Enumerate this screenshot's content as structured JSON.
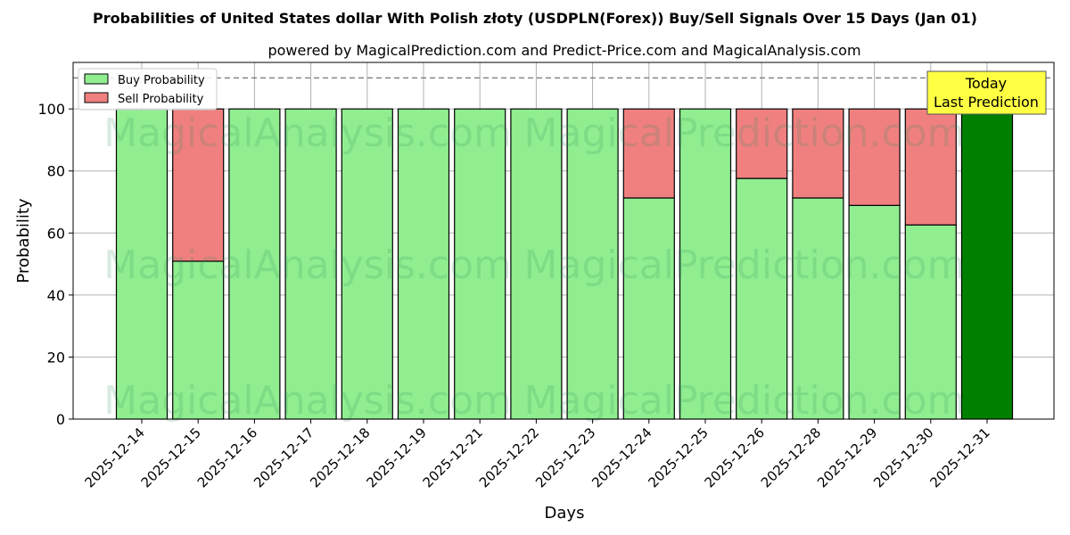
{
  "chart_data": {
    "type": "bar",
    "stacked": true,
    "title": "Probabilities of United States dollar With Polish złoty (USDPLN(Forex)) Buy/Sell Signals Over 15 Days (Jan 01)",
    "subtitle": "powered by MagicalPrediction.com and Predict-Price.com and MagicalAnalysis.com",
    "xlabel": "Days",
    "ylabel": "Probability",
    "ylim": [
      0,
      115
    ],
    "yticks": [
      0,
      20,
      40,
      60,
      80,
      100
    ],
    "grid": true,
    "reference_line": 110,
    "categories": [
      "2025-12-14",
      "2025-12-15",
      "2025-12-16",
      "2025-12-17",
      "2025-12-18",
      "2025-12-19",
      "2025-12-21",
      "2025-12-22",
      "2025-12-23",
      "2025-12-24",
      "2025-12-25",
      "2025-12-26",
      "2025-12-28",
      "2025-12-29",
      "2025-12-30",
      "2025-12-31"
    ],
    "series": [
      {
        "name": "Buy Probability",
        "color": "#90ee90",
        "values": [
          100,
          50.9,
          100,
          100,
          100,
          100,
          100,
          100,
          100,
          71.3,
          100,
          77.6,
          71.3,
          68.9,
          62.6,
          100
        ]
      },
      {
        "name": "Sell Probability",
        "color": "#f08080",
        "values": [
          0,
          49.1,
          0,
          0,
          0,
          0,
          0,
          0,
          0,
          28.7,
          0,
          22.4,
          28.7,
          31.1,
          37.4,
          0
        ]
      }
    ],
    "highlight_color": "#008000",
    "legend_position": "top-left",
    "annotation": {
      "line1": "Today",
      "line2": "Last Prediction",
      "color": "#ffff44"
    },
    "watermarks": [
      "MagicalAnalysis.com",
      "MagicalPrediction.com"
    ]
  }
}
